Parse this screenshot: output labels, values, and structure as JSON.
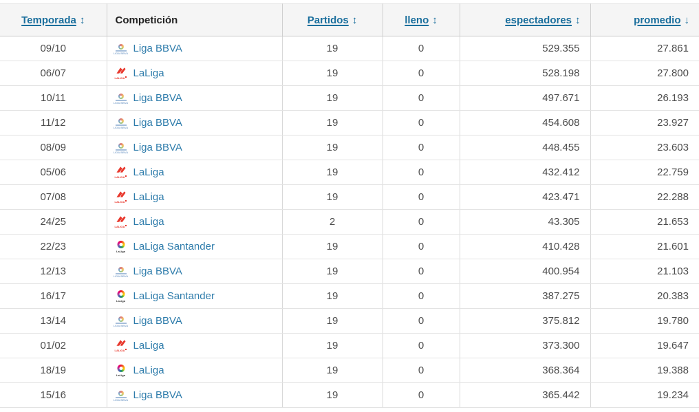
{
  "table": {
    "columns": [
      {
        "key": "temporada",
        "label": "Temporada",
        "sort": "↕",
        "sortable": true,
        "align": "center"
      },
      {
        "key": "competicion",
        "label": "Competición",
        "sortable": false,
        "align": "left"
      },
      {
        "key": "partidos",
        "label": "Partidos",
        "sort": "↕",
        "sortable": true,
        "align": "center"
      },
      {
        "key": "lleno",
        "label": "lleno",
        "sort": "↕",
        "sortable": true,
        "align": "center"
      },
      {
        "key": "espectadores",
        "label": "espectadores",
        "sort": "↕",
        "sortable": true,
        "align": "right"
      },
      {
        "key": "promedio",
        "label": "promedio",
        "sort": "↓",
        "sortable": true,
        "align": "right",
        "sorted": "desc"
      }
    ],
    "rows": [
      {
        "temporada": "09/10",
        "competicion": "Liga BBVA",
        "icon": "liga-bbva",
        "partidos": "19",
        "lleno": "0",
        "espectadores": "529.355",
        "promedio": "27.861"
      },
      {
        "temporada": "06/07",
        "competicion": "LaLiga",
        "icon": "laliga-red",
        "partidos": "19",
        "lleno": "0",
        "espectadores": "528.198",
        "promedio": "27.800"
      },
      {
        "temporada": "10/11",
        "competicion": "Liga BBVA",
        "icon": "liga-bbva",
        "partidos": "19",
        "lleno": "0",
        "espectadores": "497.671",
        "promedio": "26.193"
      },
      {
        "temporada": "11/12",
        "competicion": "Liga BBVA",
        "icon": "liga-bbva",
        "partidos": "19",
        "lleno": "0",
        "espectadores": "454.608",
        "promedio": "23.927"
      },
      {
        "temporada": "08/09",
        "competicion": "Liga BBVA",
        "icon": "liga-bbva",
        "partidos": "19",
        "lleno": "0",
        "espectadores": "448.455",
        "promedio": "23.603"
      },
      {
        "temporada": "05/06",
        "competicion": "LaLiga",
        "icon": "laliga-red",
        "partidos": "19",
        "lleno": "0",
        "espectadores": "432.412",
        "promedio": "22.759"
      },
      {
        "temporada": "07/08",
        "competicion": "LaLiga",
        "icon": "laliga-red",
        "partidos": "19",
        "lleno": "0",
        "espectadores": "423.471",
        "promedio": "22.288"
      },
      {
        "temporada": "24/25",
        "competicion": "LaLiga",
        "icon": "laliga-red",
        "partidos": "2",
        "lleno": "0",
        "espectadores": "43.305",
        "promedio": "21.653"
      },
      {
        "temporada": "22/23",
        "competicion": "LaLiga Santander",
        "icon": "laliga-color",
        "partidos": "19",
        "lleno": "0",
        "espectadores": "410.428",
        "promedio": "21.601"
      },
      {
        "temporada": "12/13",
        "competicion": "Liga BBVA",
        "icon": "liga-bbva",
        "partidos": "19",
        "lleno": "0",
        "espectadores": "400.954",
        "promedio": "21.103"
      },
      {
        "temporada": "16/17",
        "competicion": "LaLiga Santander",
        "icon": "laliga-color",
        "partidos": "19",
        "lleno": "0",
        "espectadores": "387.275",
        "promedio": "20.383"
      },
      {
        "temporada": "13/14",
        "competicion": "Liga BBVA",
        "icon": "liga-bbva",
        "partidos": "19",
        "lleno": "0",
        "espectadores": "375.812",
        "promedio": "19.780"
      },
      {
        "temporada": "01/02",
        "competicion": "LaLiga",
        "icon": "laliga-red",
        "partidos": "19",
        "lleno": "0",
        "espectadores": "373.300",
        "promedio": "19.647"
      },
      {
        "temporada": "18/19",
        "competicion": "LaLiga",
        "icon": "laliga-color",
        "partidos": "19",
        "lleno": "0",
        "espectadores": "368.364",
        "promedio": "19.388"
      },
      {
        "temporada": "15/16",
        "competicion": "Liga BBVA",
        "icon": "liga-bbva",
        "partidos": "19",
        "lleno": "0",
        "espectadores": "365.442",
        "promedio": "19.234"
      }
    ]
  },
  "icons": {
    "liga-bbva": {
      "caption": "LIGA BBVA"
    },
    "laliga-red": {
      "caption": "LALIGA"
    },
    "laliga-color": {
      "caption": "LaLiga"
    }
  },
  "colors": {
    "header_bg": "#f5f5f5",
    "header_link": "#1b6f9d",
    "competition_link": "#2e7cab",
    "cell_text": "#4d4d4d",
    "header_border": "#c9c9c9",
    "column_border": "#d8d8d8",
    "row_border": "#e3e3e3",
    "laliga_red": "#e8382d"
  }
}
